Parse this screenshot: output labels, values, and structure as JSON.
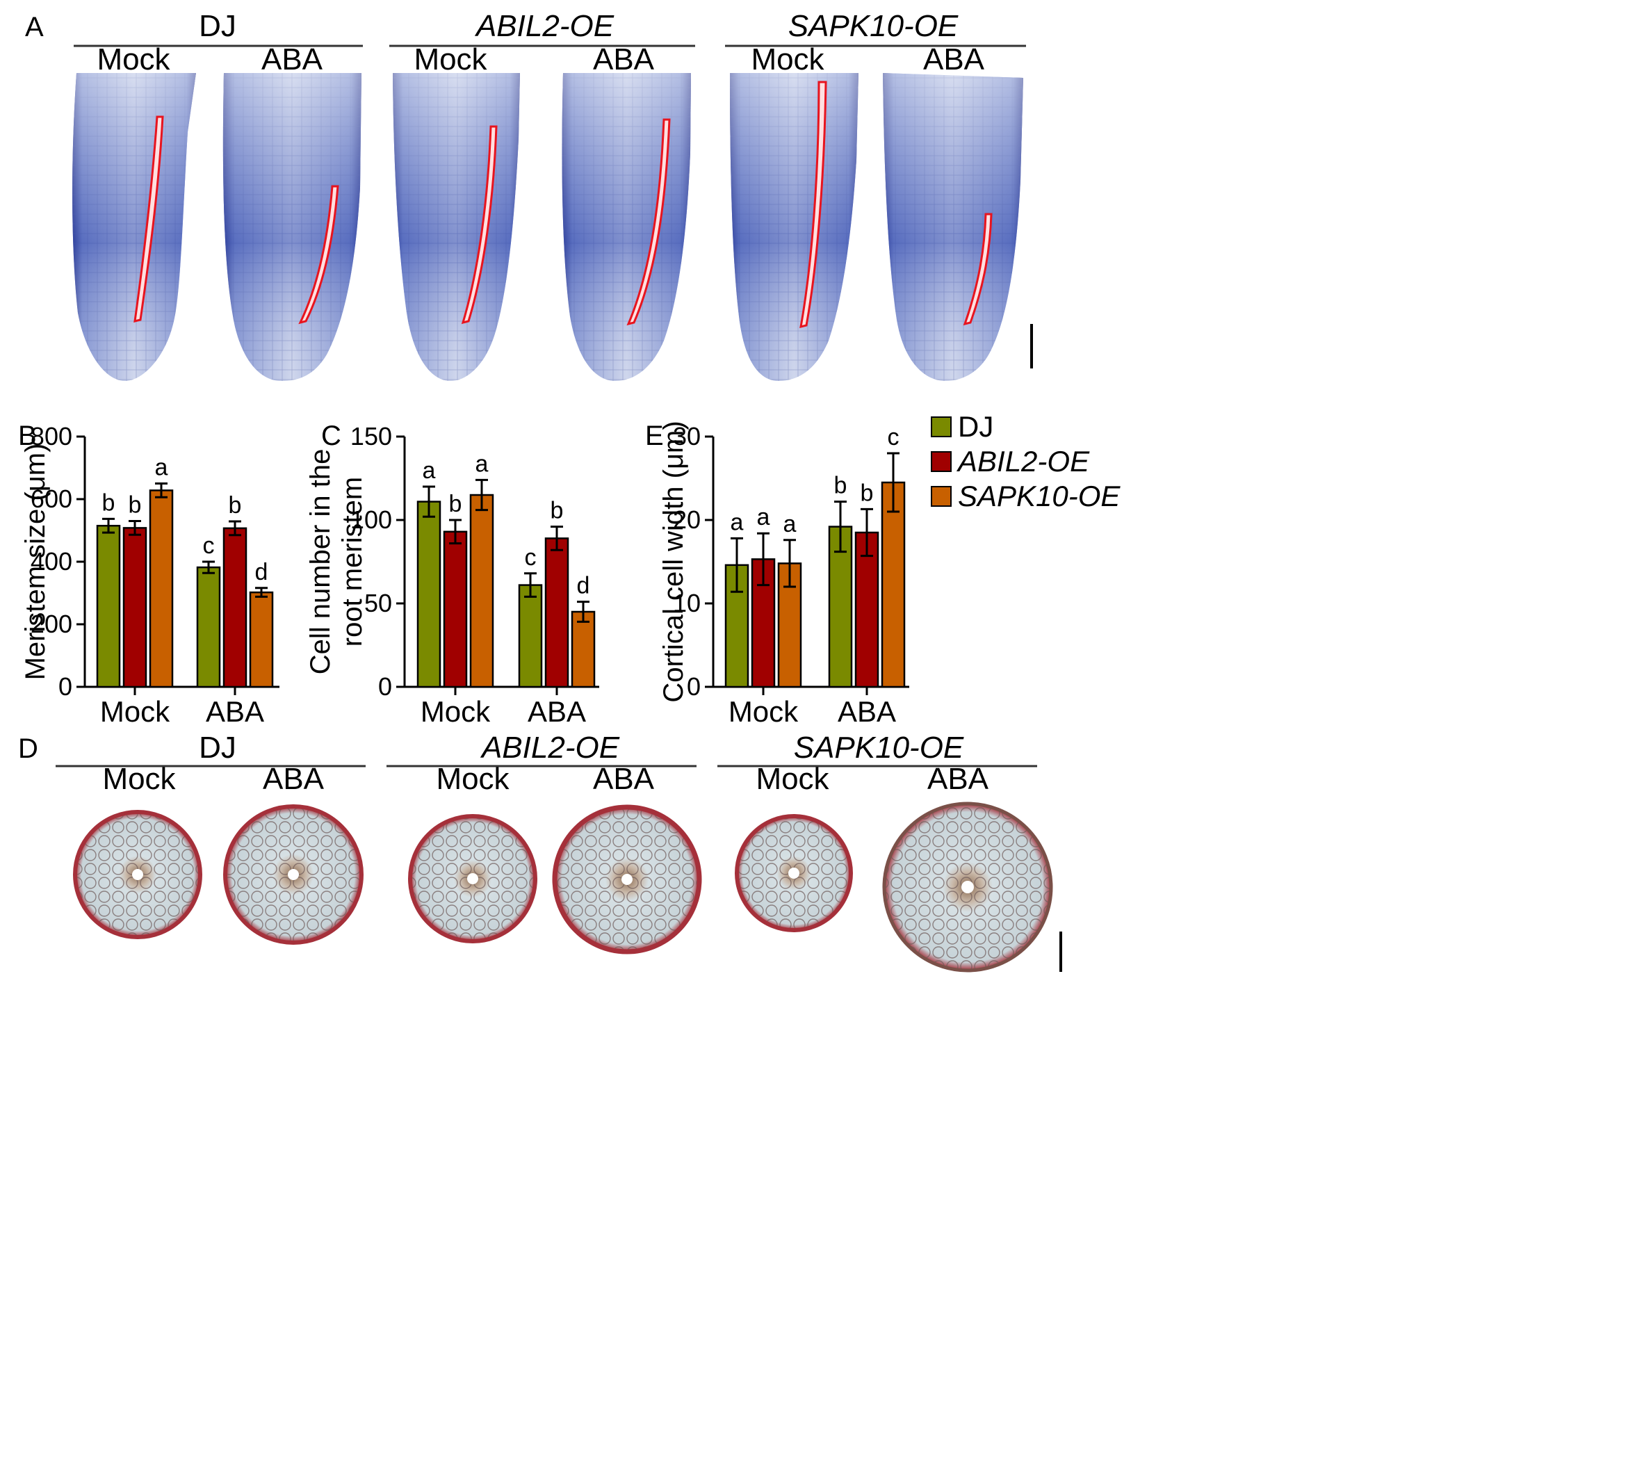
{
  "panels": {
    "A": {
      "letter": "A",
      "groups": [
        {
          "name": "DJ",
          "italic": false,
          "conditions": [
            "Mock",
            "ABA"
          ]
        },
        {
          "name": "ABIL2-OE",
          "italic": true,
          "conditions": [
            "Mock",
            "ABA"
          ]
        },
        {
          "name": "SAPK10-OE",
          "italic": true,
          "conditions": [
            "Mock",
            "ABA"
          ]
        }
      ]
    },
    "D": {
      "letter": "D",
      "groups": [
        {
          "name": "DJ",
          "italic": false,
          "conditions": [
            "Mock",
            "ABA"
          ]
        },
        {
          "name": "ABIL2-OE",
          "italic": true,
          "conditions": [
            "Mock",
            "ABA"
          ]
        },
        {
          "name": "SAPK10-OE",
          "italic": true,
          "conditions": [
            "Mock",
            "ABA"
          ]
        }
      ]
    }
  },
  "legend": [
    {
      "label": "DJ",
      "color": "#7a8a00"
    },
    {
      "label": "ABIL2-OE",
      "color": "#a00000"
    },
    {
      "label": "SAPK10-OE",
      "color": "#c86000"
    }
  ],
  "chart_data": [
    {
      "panel": "B",
      "type": "bar",
      "ylabel": "Meristem size (μm)",
      "categories": [
        "Mock",
        "ABA"
      ],
      "ylim": [
        0,
        800
      ],
      "yticks": [
        0,
        200,
        400,
        600,
        800
      ],
      "series": [
        {
          "name": "DJ",
          "values": [
            515,
            382
          ],
          "errors": [
            22,
            18
          ],
          "letters": [
            "b",
            "c"
          ]
        },
        {
          "name": "ABIL2-OE",
          "values": [
            508,
            507
          ],
          "errors": [
            22,
            22
          ],
          "letters": [
            "b",
            "b"
          ]
        },
        {
          "name": "SAPK10-OE",
          "values": [
            628,
            302
          ],
          "errors": [
            22,
            14
          ],
          "letters": [
            "a",
            "d"
          ]
        }
      ]
    },
    {
      "panel": "C",
      "type": "bar",
      "ylabel": "Cell number in the root meristem",
      "ylabel_lines": [
        "Cell number in the",
        "root meristem"
      ],
      "categories": [
        "Mock",
        "ABA"
      ],
      "ylim": [
        0,
        150
      ],
      "yticks": [
        0,
        50,
        100,
        150
      ],
      "series": [
        {
          "name": "DJ",
          "values": [
            111,
            61
          ],
          "errors": [
            9,
            7
          ],
          "letters": [
            "a",
            "c"
          ]
        },
        {
          "name": "ABIL2-OE",
          "values": [
            93,
            89
          ],
          "errors": [
            7,
            7
          ],
          "letters": [
            "b",
            "b"
          ]
        },
        {
          "name": "SAPK10-OE",
          "values": [
            115,
            45
          ],
          "errors": [
            9,
            6
          ],
          "letters": [
            "a",
            "d"
          ]
        }
      ]
    },
    {
      "panel": "E",
      "type": "bar",
      "ylabel": "Cortical cell width (μm)",
      "categories": [
        "Mock",
        "ABA"
      ],
      "ylim": [
        0,
        30
      ],
      "yticks": [
        0,
        10,
        20,
        30
      ],
      "series": [
        {
          "name": "DJ",
          "values": [
            14.6,
            19.2
          ],
          "errors": [
            3.2,
            3.0
          ],
          "letters": [
            "a",
            "b"
          ]
        },
        {
          "name": "ABIL2-OE",
          "values": [
            15.3,
            18.5
          ],
          "errors": [
            3.1,
            2.8
          ],
          "letters": [
            "a",
            "b"
          ]
        },
        {
          "name": "SAPK10-OE",
          "values": [
            14.8,
            24.5
          ],
          "errors": [
            2.8,
            3.5
          ],
          "letters": [
            "a",
            "c"
          ]
        }
      ]
    }
  ]
}
